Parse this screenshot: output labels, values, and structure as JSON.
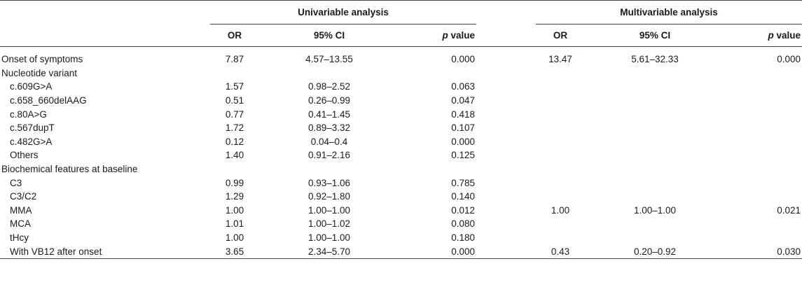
{
  "header": {
    "univariable": "Univariable analysis",
    "multivariable": "Multivariable analysis",
    "or": "OR",
    "ci": "95% CI",
    "p_italic": "p",
    "p_rest": " value"
  },
  "rows": [
    {
      "label": "Onset of symptoms",
      "indent": false,
      "u_or": "7.87",
      "u_ci": "4.57–13.55",
      "u_p": "0.000",
      "m_or": "13.47",
      "m_ci": "5.61–32.33",
      "m_p": "0.000"
    },
    {
      "label": "Nucleotide variant",
      "indent": false,
      "u_or": "",
      "u_ci": "",
      "u_p": "",
      "m_or": "",
      "m_ci": "",
      "m_p": ""
    },
    {
      "label": "c.609G>A",
      "indent": true,
      "u_or": "1.57",
      "u_ci": "0.98–2.52",
      "u_p": "0.063",
      "m_or": "",
      "m_ci": "",
      "m_p": ""
    },
    {
      "label": "c.658_660delAAG",
      "indent": true,
      "u_or": "0.51",
      "u_ci": "0.26–0.99",
      "u_p": "0.047",
      "m_or": "",
      "m_ci": "",
      "m_p": ""
    },
    {
      "label": "c.80A>G",
      "indent": true,
      "u_or": "0.77",
      "u_ci": "0.41–1.45",
      "u_p": "0.418",
      "m_or": "",
      "m_ci": "",
      "m_p": ""
    },
    {
      "label": "c.567dupT",
      "indent": true,
      "u_or": "1.72",
      "u_ci": "0.89–3.32",
      "u_p": "0.107",
      "m_or": "",
      "m_ci": "",
      "m_p": ""
    },
    {
      "label": "c.482G>A",
      "indent": true,
      "u_or": "0.12",
      "u_ci": "0.04–0.4",
      "u_p": "0.000",
      "m_or": "",
      "m_ci": "",
      "m_p": ""
    },
    {
      "label": "Others",
      "indent": true,
      "u_or": "1.40",
      "u_ci": "0.91–2.16",
      "u_p": "0.125",
      "m_or": "",
      "m_ci": "",
      "m_p": ""
    },
    {
      "label": "Biochemical features at baseline",
      "indent": false,
      "u_or": "",
      "u_ci": "",
      "u_p": "",
      "m_or": "",
      "m_ci": "",
      "m_p": ""
    },
    {
      "label": "C3",
      "indent": true,
      "u_or": "0.99",
      "u_ci": "0.93–1.06",
      "u_p": "0.785",
      "m_or": "",
      "m_ci": "",
      "m_p": ""
    },
    {
      "label": "C3/C2",
      "indent": true,
      "u_or": "1.29",
      "u_ci": "0.92–1.80",
      "u_p": "0.140",
      "m_or": "",
      "m_ci": "",
      "m_p": ""
    },
    {
      "label": "MMA",
      "indent": true,
      "u_or": "1.00",
      "u_ci": "1.00–1.00",
      "u_p": "0.012",
      "m_or": "1.00",
      "m_ci": "1.00–1.00",
      "m_p": "0.021"
    },
    {
      "label": "MCA",
      "indent": true,
      "u_or": "1.01",
      "u_ci": "1.00–1.02",
      "u_p": "0.080",
      "m_or": "",
      "m_ci": "",
      "m_p": ""
    },
    {
      "label": "tHcy",
      "indent": true,
      "u_or": "1.00",
      "u_ci": "1.00–1.00",
      "u_p": "0.180",
      "m_or": "",
      "m_ci": "",
      "m_p": ""
    },
    {
      "label": "With VB12 after onset",
      "indent": true,
      "u_or": "3.65",
      "u_ci": "2.34–5.70",
      "u_p": "0.000",
      "m_or": "0.43",
      "m_ci": "0.20–0.92",
      "m_p": "0.030"
    }
  ]
}
